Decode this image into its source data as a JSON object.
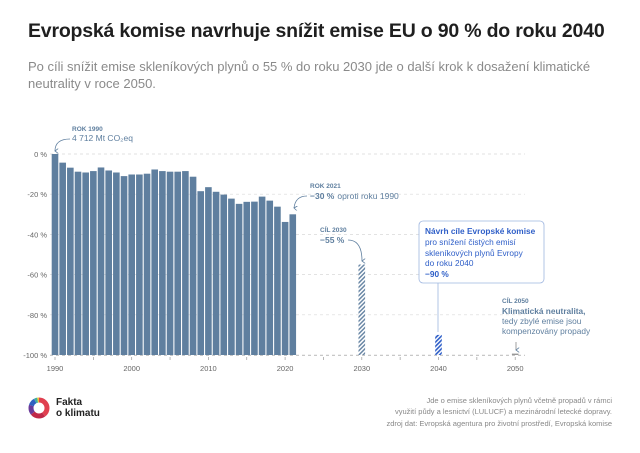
{
  "header": {
    "title": "Evropská komise navrhuje snížit emise EU o 90 % do roku 2040",
    "subtitle": "Po cíli snížit emise skleníkových plynů o 55 % do roku 2030 jde o další krok k dosažení klimatické neutrality v roce 2050."
  },
  "chart_data": {
    "type": "bar",
    "ylim": [
      -100,
      0
    ],
    "y_ticks": [
      "0 %",
      "-20 %",
      "-40 %",
      "-60 %",
      "-80 %",
      "-100 %"
    ],
    "y_tick_values": [
      0,
      -20,
      -40,
      -60,
      -80,
      -100
    ],
    "x_ticks": [
      "1990",
      "2000",
      "2010",
      "2020",
      "2030",
      "2040",
      "2050"
    ],
    "grid": true,
    "colors": {
      "historical": "#5f7f9f",
      "target_2030": "#6b88a6",
      "target_2040": "#2f5fc8",
      "target_2050": "#999999",
      "annotation": "#5f7f9f",
      "highlight": "#2f5fc8"
    },
    "series": [
      {
        "kind": "historical",
        "x": [
          1990,
          1991,
          1992,
          1993,
          1994,
          1995,
          1996,
          1997,
          1998,
          1999,
          2000,
          2001,
          2002,
          2003,
          2004,
          2005,
          2006,
          2007,
          2008,
          2009,
          2010,
          2011,
          2012,
          2013,
          2014,
          2015,
          2016,
          2017,
          2018,
          2019,
          2020,
          2021
        ],
        "values": [
          0,
          -4.3,
          -6.8,
          -8.8,
          -9.2,
          -8.5,
          -6.7,
          -8.2,
          -9.2,
          -11,
          -10.2,
          -10.2,
          -9.8,
          -7.7,
          -8.5,
          -8.8,
          -8.8,
          -8.5,
          -11.3,
          -18.5,
          -16.5,
          -18.8,
          -20.2,
          -22.2,
          -24.8,
          -23.8,
          -23.7,
          -21.2,
          -23.2,
          -26.2,
          -33.8,
          -30
        ]
      },
      {
        "kind": "targets",
        "x": [
          2030,
          2040,
          2050
        ],
        "values": [
          -55,
          -90,
          -100
        ]
      }
    ],
    "annotations": {
      "y1990": {
        "label": "ROK 1990",
        "text": "4 712 Mt CO₂eq"
      },
      "y2021": {
        "label": "ROK 2021",
        "value": "−30 %",
        "text": "oproti roku 1990"
      },
      "t2030": {
        "label": "CÍL 2030",
        "value": "−55 %"
      },
      "t2040": {
        "title": "Návrh cíle Evropské komise",
        "line1": "pro snížení čistých emisí",
        "line2": "skleníkových plynů Evropy",
        "line3": "do roku 2040",
        "value": "−90 %"
      },
      "t2050": {
        "label": "CÍL 2050",
        "title": "Klimatická neutralita,",
        "line1": "tedy zbylé emise jsou",
        "line2": "kompenzovány propady"
      }
    }
  },
  "footer": {
    "note1": "Jde o emise skleníkových plynů včetně propadů v rámci",
    "note2": "využití půdy a lesnictví (LULUCF) a mezinárodní letecké dopravy.",
    "source": "zdroj dat: Evropská agentura pro životní prostředí, Evropská komise",
    "logo_line1": "Fakta",
    "logo_line2": "o klimatu"
  }
}
